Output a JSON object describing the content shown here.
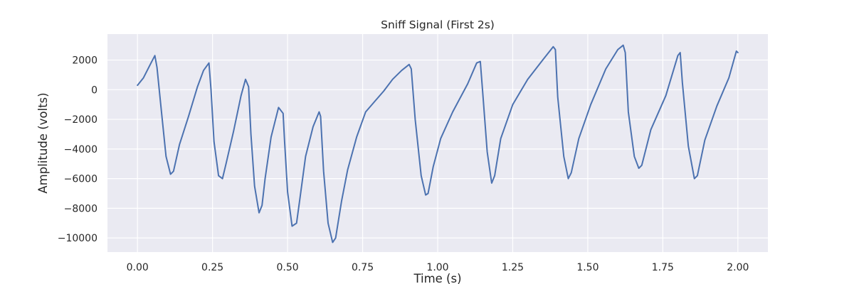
{
  "chart_data": {
    "type": "line",
    "title": "Sniff Signal (First 2s)",
    "xlabel": "Time (s)",
    "ylabel": "Amplitude (volts)",
    "xlim": [
      -0.1,
      2.1
    ],
    "ylim": [
      -10950,
      3750
    ],
    "xticks": [
      0.0,
      0.25,
      0.5,
      0.75,
      1.0,
      1.25,
      1.5,
      1.75,
      2.0
    ],
    "xtick_labels": [
      "0.00",
      "0.25",
      "0.50",
      "0.75",
      "1.00",
      "1.25",
      "1.50",
      "1.75",
      "2.00"
    ],
    "yticks": [
      2000,
      0,
      -2000,
      -4000,
      -6000,
      -8000,
      -10000
    ],
    "ytick_labels": [
      "2000",
      "0",
      "−2000",
      "−4000",
      "−6000",
      "−8000",
      "−10000"
    ],
    "grid": true,
    "background": "#eaeaf2",
    "line_color": "#4c72b0",
    "series": [
      {
        "x": [
          0.0,
          0.02,
          0.045,
          0.058,
          0.065,
          0.08,
          0.095,
          0.11,
          0.12,
          0.14,
          0.17,
          0.2,
          0.22,
          0.238,
          0.245,
          0.255,
          0.27,
          0.283,
          0.295,
          0.32,
          0.345,
          0.36,
          0.37,
          0.378,
          0.39,
          0.405,
          0.415,
          0.425,
          0.445,
          0.47,
          0.485,
          0.49,
          0.5,
          0.515,
          0.53,
          0.54,
          0.56,
          0.585,
          0.605,
          0.61,
          0.62,
          0.635,
          0.65,
          0.66,
          0.68,
          0.7,
          0.73,
          0.76,
          0.79,
          0.82,
          0.85,
          0.88,
          0.905,
          0.912,
          0.925,
          0.945,
          0.96,
          0.968,
          0.985,
          1.01,
          1.05,
          1.1,
          1.13,
          1.142,
          1.15,
          1.165,
          1.18,
          1.19,
          1.21,
          1.25,
          1.3,
          1.35,
          1.385,
          1.392,
          1.4,
          1.42,
          1.435,
          1.445,
          1.47,
          1.51,
          1.56,
          1.6,
          1.618,
          1.625,
          1.635,
          1.655,
          1.67,
          1.68,
          1.71,
          1.76,
          1.8,
          1.808,
          1.815,
          1.835,
          1.855,
          1.865,
          1.89,
          1.93,
          1.97,
          1.995,
          2.0
        ],
        "y": [
          300,
          800,
          1800,
          2300,
          1500,
          -1500,
          -4500,
          -5700,
          -5500,
          -3700,
          -1800,
          200,
          1300,
          1800,
          0,
          -3500,
          -5800,
          -6000,
          -5000,
          -2800,
          -400,
          700,
          200,
          -3000,
          -6500,
          -8300,
          -7800,
          -6000,
          -3200,
          -1200,
          -1600,
          -3500,
          -6900,
          -9200,
          -9000,
          -7500,
          -4500,
          -2500,
          -1500,
          -1800,
          -5500,
          -9000,
          -10300,
          -10000,
          -7500,
          -5400,
          -3200,
          -1500,
          -800,
          -100,
          700,
          1300,
          1700,
          1400,
          -2000,
          -5800,
          -7100,
          -7000,
          -5200,
          -3300,
          -1500,
          400,
          1800,
          1900,
          -200,
          -4200,
          -6300,
          -5800,
          -3300,
          -1000,
          700,
          2000,
          2900,
          2700,
          -500,
          -4500,
          -6000,
          -5600,
          -3300,
          -1000,
          1400,
          2700,
          3000,
          2500,
          -1500,
          -4500,
          -5300,
          -5100,
          -2700,
          -400,
          2300,
          2500,
          500,
          -3800,
          -6000,
          -5800,
          -3400,
          -1100,
          800,
          2600,
          2500
        ]
      }
    ]
  }
}
